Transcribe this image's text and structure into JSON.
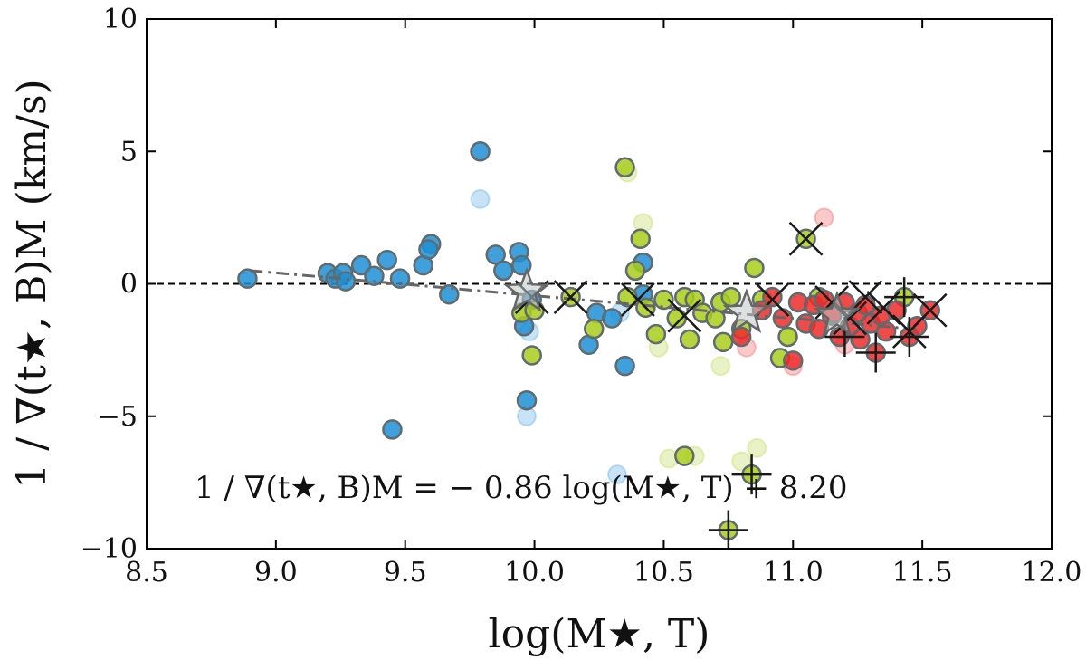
{
  "chart_data": {
    "type": "scatter",
    "title": "",
    "xlabel": "log(M★, T)",
    "ylabel": "1 / ∇(t★, B)M (km/s)",
    "xlim": [
      8.5,
      12.0
    ],
    "ylim": [
      -10,
      10
    ],
    "x_ticks": [
      "8.5",
      "9.0",
      "9.5",
      "10.0",
      "10.5",
      "11.0",
      "11.5",
      "12.0"
    ],
    "y_ticks": [
      "10",
      "5",
      "0",
      "−5",
      "−10"
    ],
    "grid": false,
    "legend": "none",
    "annotation": "1 / ∇(t★, B)M = − 0.86 log(M★, T) + 8.20",
    "reference_line": {
      "y": 0,
      "style": "dashed"
    },
    "fit_line": {
      "slope": -0.86,
      "intercept": 8.2,
      "x_range": [
        8.9,
        11.5
      ],
      "style": "dash-dot"
    },
    "colors": {
      "blue": "#1f8fd6",
      "green": "#a8cc1c",
      "red": "#ec2b2b",
      "edge": "#5f6b6e",
      "cross": "#1a1a1a",
      "fit": "#666666"
    },
    "series": [
      {
        "color": "blue",
        "points": [
          [
            8.89,
            0.2
          ],
          [
            9.2,
            0.4
          ],
          [
            9.23,
            0.2
          ],
          [
            9.26,
            0.4
          ],
          [
            9.27,
            0.1
          ],
          [
            9.33,
            0.7
          ],
          [
            9.38,
            0.3
          ],
          [
            9.43,
            0.9
          ],
          [
            9.45,
            -5.5
          ],
          [
            9.48,
            0.2
          ],
          [
            9.57,
            0.7
          ],
          [
            9.6,
            1.5
          ],
          [
            9.59,
            1.3
          ],
          [
            9.67,
            -0.4
          ],
          [
            9.79,
            5.0
          ],
          [
            9.85,
            1.1
          ],
          [
            9.88,
            0.5
          ],
          [
            9.94,
            1.2
          ],
          [
            9.95,
            0.7
          ],
          [
            9.97,
            -4.4
          ],
          [
            9.96,
            -1.6
          ],
          [
            9.99,
            -0.6
          ],
          [
            10.21,
            -2.3
          ],
          [
            10.24,
            -1.1
          ],
          [
            10.3,
            -1.3
          ],
          [
            10.35,
            -3.1
          ],
          [
            10.42,
            0.8
          ],
          [
            10.42,
            -0.4
          ]
        ]
      },
      {
        "color": "green",
        "points": [
          [
            9.95,
            -1.1
          ],
          [
            10.0,
            -1.0
          ],
          [
            9.99,
            -2.7
          ],
          [
            10.14,
            -0.5
          ],
          [
            10.23,
            -1.7
          ],
          [
            10.35,
            4.4
          ],
          [
            10.39,
            0.5
          ],
          [
            10.41,
            1.7
          ],
          [
            10.36,
            -0.5
          ],
          [
            10.43,
            -0.9
          ],
          [
            10.47,
            -1.9
          ],
          [
            10.5,
            -0.6
          ],
          [
            10.55,
            -1.3
          ],
          [
            10.58,
            -0.5
          ],
          [
            10.6,
            -2.1
          ],
          [
            10.62,
            -0.6
          ],
          [
            10.65,
            -1.1
          ],
          [
            10.7,
            -1.3
          ],
          [
            10.72,
            -0.7
          ],
          [
            10.73,
            -2.2
          ],
          [
            10.76,
            -0.5
          ],
          [
            10.8,
            -1.7
          ],
          [
            10.85,
            0.6
          ],
          [
            10.88,
            -0.6
          ],
          [
            10.95,
            -2.8
          ],
          [
            10.98,
            -2.0
          ],
          [
            11.05,
            1.7
          ],
          [
            11.1,
            -0.5
          ],
          [
            11.43,
            -0.5
          ],
          [
            10.58,
            -6.5
          ],
          [
            10.84,
            -7.2
          ],
          [
            10.75,
            -9.3
          ]
        ]
      },
      {
        "color": "red",
        "points": [
          [
            10.8,
            -2.0
          ],
          [
            10.88,
            -1.0
          ],
          [
            10.92,
            -0.5
          ],
          [
            10.96,
            -1.3
          ],
          [
            11.0,
            -2.9
          ],
          [
            11.02,
            -0.7
          ],
          [
            11.05,
            -1.5
          ],
          [
            11.08,
            -0.8
          ],
          [
            11.1,
            -1.7
          ],
          [
            11.12,
            -0.6
          ],
          [
            11.15,
            -1.2
          ],
          [
            11.18,
            -2.0
          ],
          [
            11.2,
            -0.7
          ],
          [
            11.22,
            -1.6
          ],
          [
            11.25,
            -1.1
          ],
          [
            11.28,
            -0.8
          ],
          [
            11.3,
            -1.5
          ],
          [
            11.32,
            -2.6
          ],
          [
            11.34,
            -1.2
          ],
          [
            11.36,
            -1.8
          ],
          [
            11.4,
            -1.0
          ],
          [
            11.45,
            -2.0
          ],
          [
            11.48,
            -1.6
          ],
          [
            11.53,
            -1.0
          ],
          [
            11.26,
            -2.1
          ]
        ]
      },
      {
        "color": "blue",
        "faded": true,
        "points": [
          [
            9.79,
            3.2
          ],
          [
            9.97,
            -5.0
          ],
          [
            9.98,
            -1.8
          ],
          [
            10.32,
            -7.2
          ],
          [
            10.33,
            -1.1
          ]
        ]
      },
      {
        "color": "green",
        "faded": true,
        "points": [
          [
            10.36,
            4.2
          ],
          [
            10.42,
            2.3
          ],
          [
            10.52,
            -6.6
          ],
          [
            10.62,
            -6.5
          ],
          [
            10.72,
            -3.1
          ],
          [
            10.8,
            -6.7
          ],
          [
            10.86,
            -6.2
          ],
          [
            10.48,
            -2.4
          ]
        ]
      },
      {
        "color": "red",
        "faded": true,
        "points": [
          [
            11.12,
            2.5
          ],
          [
            11.0,
            -3.1
          ],
          [
            10.82,
            -2.4
          ],
          [
            11.2,
            -2.3
          ]
        ]
      }
    ],
    "crosses": [
      [
        9.99,
        -0.5
      ],
      [
        10.14,
        -0.5
      ],
      [
        10.4,
        -0.6
      ],
      [
        10.58,
        -1.2
      ],
      [
        10.92,
        -0.6
      ],
      [
        11.05,
        1.7
      ],
      [
        11.15,
        -0.7
      ],
      [
        11.22,
        -1.3
      ],
      [
        11.35,
        -0.9
      ],
      [
        11.45,
        -1.8
      ],
      [
        11.53,
        -1.0
      ],
      [
        11.28,
        -0.5
      ]
    ],
    "errorbar_points": [
      [
        10.75,
        -9.3
      ],
      [
        10.84,
        -7.2
      ],
      [
        11.43,
        -0.5
      ],
      [
        11.32,
        -2.6
      ],
      [
        11.45,
        -2.0
      ],
      [
        11.2,
        -2.0
      ]
    ],
    "star_markers": [
      [
        9.97,
        -0.3
      ],
      [
        10.82,
        -1.1
      ],
      [
        11.17,
        -1.2
      ]
    ]
  }
}
